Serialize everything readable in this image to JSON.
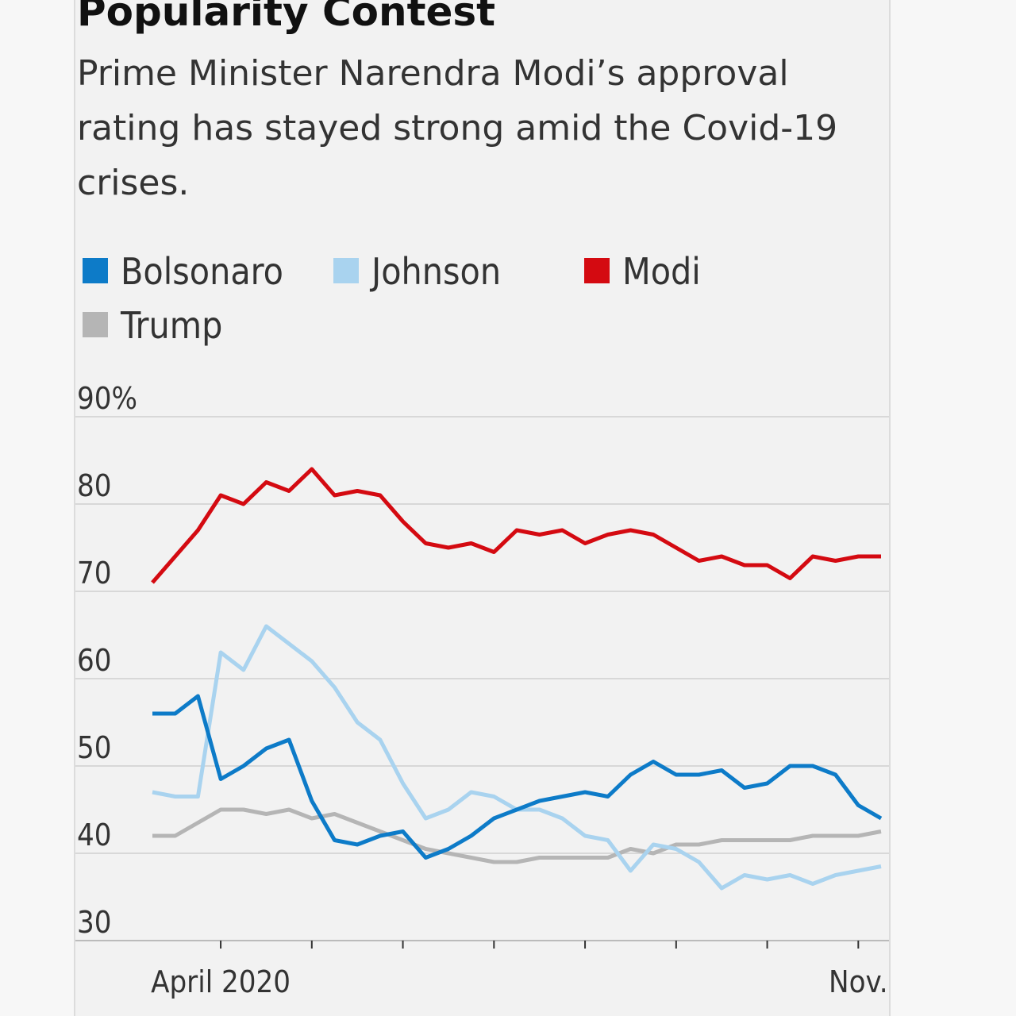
{
  "chart_data": {
    "type": "line",
    "title": "Popularity Contest",
    "subtitle": "Prime Minister Narendra Modi’s approval rating has stayed strong amid the Covid-19 crises.",
    "categories": [
      null,
      null,
      null,
      "April 2020",
      null,
      null,
      null,
      null,
      null,
      null,
      null,
      null,
      null,
      null,
      null,
      null,
      null,
      null,
      null,
      null,
      null,
      null,
      null,
      null,
      null,
      null,
      null,
      null,
      null,
      null,
      null,
      "Nov.",
      null
    ],
    "series": [
      {
        "name": "Bolsonaro",
        "color": "#0d7bc8",
        "values": [
          56,
          56,
          58,
          48.5,
          50,
          52,
          53,
          46,
          41.5,
          41,
          42,
          42.5,
          39.5,
          40.5,
          42,
          44,
          45,
          46,
          46.5,
          47,
          46.5,
          49,
          50.5,
          49,
          49,
          49.5,
          47.5,
          48,
          50,
          50,
          49,
          45.5,
          44
        ]
      },
      {
        "name": "Johnson",
        "color": "#a9d3ef",
        "values": [
          47,
          46.5,
          46.5,
          63,
          61,
          66,
          64,
          62,
          59,
          55,
          53,
          48,
          44,
          45,
          47,
          46.5,
          45,
          45,
          44,
          42,
          41.5,
          38,
          41,
          40.5,
          39,
          36,
          37.5,
          37,
          37.5,
          36.5,
          37.5,
          38,
          38.5
        ]
      },
      {
        "name": "Modi",
        "color": "#d40a11",
        "values": [
          71,
          74,
          77,
          81,
          80,
          82.5,
          81.5,
          84,
          81,
          81.5,
          81,
          78,
          75.5,
          75,
          75.5,
          74.5,
          77,
          76.5,
          77,
          75.5,
          76.5,
          77,
          76.5,
          75,
          73.5,
          74,
          73,
          73,
          71.5,
          74,
          73.5,
          74,
          74
        ]
      },
      {
        "name": "Trump",
        "color": "#b5b5b5",
        "values": [
          42,
          42,
          43.5,
          45,
          45,
          44.5,
          45,
          44,
          44.5,
          43.5,
          42.5,
          41.5,
          40.5,
          40,
          39.5,
          39,
          39,
          39.5,
          39.5,
          39.5,
          39.5,
          40.5,
          40,
          41,
          41,
          41.5,
          41.5,
          41.5,
          41.5,
          42,
          42,
          42,
          42.5
        ]
      }
    ],
    "ylim": [
      30,
      90
    ],
    "yticks": [
      30,
      40,
      50,
      60,
      70,
      80,
      {
        "value": 90,
        "label": "90%"
      }
    ],
    "grid": true
  }
}
